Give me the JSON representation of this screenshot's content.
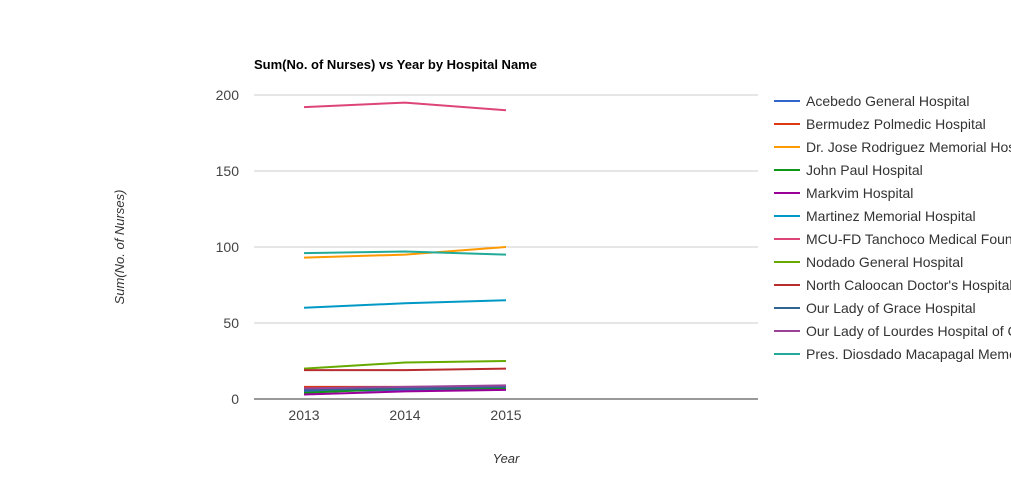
{
  "chart_data": {
    "type": "line",
    "title": "Sum(No. of Nurses) vs Year by Hospital Name",
    "xlabel": "Year",
    "ylabel": "Sum(No. of Nurses)",
    "x": [
      "2013",
      "2014",
      "2015"
    ],
    "ylim": [
      0,
      200
    ],
    "yticks": [
      0,
      50,
      100,
      150,
      200
    ],
    "grid": true,
    "legend_position": "right",
    "series": [
      {
        "name": "Acebedo General Hospital",
        "color": "#3366cc",
        "values": [
          5,
          6,
          7
        ]
      },
      {
        "name": "Bermudez Polmedic Hospital",
        "color": "#dc3912",
        "values": [
          8,
          8,
          8
        ]
      },
      {
        "name": "Dr. Jose Rodriguez Memorial Hospital",
        "color": "#ff9900",
        "values": [
          93,
          95,
          100
        ]
      },
      {
        "name": "John Paul Hospital",
        "color": "#109618",
        "values": [
          4,
          7,
          7
        ]
      },
      {
        "name": "Markvim Hospital",
        "color": "#990099",
        "values": [
          3,
          5,
          6
        ]
      },
      {
        "name": "Martinez Memorial Hospital",
        "color": "#0099c6",
        "values": [
          60,
          63,
          65
        ]
      },
      {
        "name": "MCU-FD Tanchoco Medical Foundation",
        "color": "#dd4477",
        "values": [
          192,
          195,
          190
        ]
      },
      {
        "name": "Nodado General Hospital",
        "color": "#66aa00",
        "values": [
          20,
          24,
          25
        ]
      },
      {
        "name": "North Caloocan Doctor's Hospital",
        "color": "#b82e2e",
        "values": [
          19,
          19,
          20
        ]
      },
      {
        "name": "Our Lady of Grace Hospital",
        "color": "#316395",
        "values": [
          6,
          7,
          8
        ]
      },
      {
        "name": "Our Lady of Lourdes Hospital of Caloocan",
        "color": "#994499",
        "values": [
          7,
          8,
          9
        ]
      },
      {
        "name": "Pres. Diosdado Macapagal Memorial Medical Center",
        "color": "#22aa99",
        "values": [
          96,
          97,
          95
        ]
      }
    ]
  }
}
